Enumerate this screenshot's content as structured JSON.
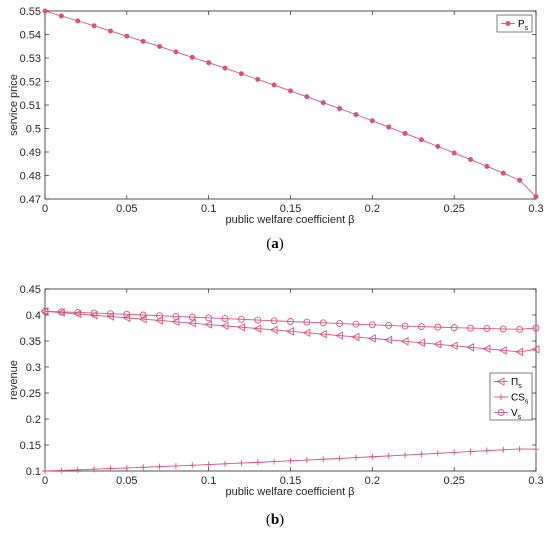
{
  "color": "#d6537a",
  "chart_data": [
    {
      "type": "line",
      "panel_label_open": "(",
      "panel_label": "a",
      "panel_label_close": ")",
      "xlabel": "public welfare coefficient β",
      "ylabel": "service price",
      "xlim": [
        0,
        0.3
      ],
      "ylim": [
        0.47,
        0.55
      ],
      "xticks": [
        "0",
        "0.05",
        "0.1",
        "0.15",
        "0.2",
        "0.25",
        "0.3"
      ],
      "yticks": [
        "0.47",
        "0.48",
        "0.49",
        "0.5",
        "0.51",
        "0.52",
        "0.53",
        "0.54",
        "0.55"
      ],
      "legend_position": "top-right",
      "x": [
        0,
        0.01,
        0.02,
        0.03,
        0.04,
        0.05,
        0.06,
        0.07,
        0.08,
        0.09,
        0.1,
        0.11,
        0.12,
        0.13,
        0.14,
        0.15,
        0.16,
        0.17,
        0.18,
        0.19,
        0.2,
        0.21,
        0.22,
        0.23,
        0.24,
        0.25,
        0.26,
        0.27,
        0.28,
        0.29,
        0.3
      ],
      "series": [
        {
          "name": "P",
          "sub": "s",
          "marker": "dot",
          "values": [
            0.55,
            0.5479,
            0.5458,
            0.5437,
            0.5415,
            0.5393,
            0.5371,
            0.5349,
            0.5326,
            0.5303,
            0.528,
            0.5257,
            0.5233,
            0.5209,
            0.5185,
            0.516,
            0.5135,
            0.511,
            0.5085,
            0.5059,
            0.5033,
            0.5006,
            0.4979,
            0.4952,
            0.4924,
            0.4896,
            0.4868,
            0.4839,
            0.481,
            0.478,
            0.471
          ]
        }
      ]
    },
    {
      "type": "line",
      "panel_label_open": "(",
      "panel_label": "b",
      "panel_label_close": ")",
      "xlabel": "public welfare coefficient β",
      "ylabel": "revenue",
      "xlim": [
        0,
        0.3
      ],
      "ylim": [
        0.1,
        0.45
      ],
      "xticks": [
        "0",
        "0.05",
        "0.1",
        "0.15",
        "0.2",
        "0.25",
        "0.3"
      ],
      "yticks": [
        "0.1",
        "0.15",
        "0.2",
        "0.25",
        "0.3",
        "0.35",
        "0.4",
        "0.45"
      ],
      "legend_position": "right",
      "x": [
        0,
        0.01,
        0.02,
        0.03,
        0.04,
        0.05,
        0.06,
        0.07,
        0.08,
        0.09,
        0.1,
        0.11,
        0.12,
        0.13,
        0.14,
        0.15,
        0.16,
        0.17,
        0.18,
        0.19,
        0.2,
        0.21,
        0.22,
        0.23,
        0.24,
        0.25,
        0.26,
        0.27,
        0.28,
        0.29,
        0.3
      ],
      "series": [
        {
          "name": "Π",
          "sub": "s",
          "marker": "triangle-left",
          "values": [
            0.407,
            0.4045,
            0.402,
            0.3995,
            0.397,
            0.3945,
            0.392,
            0.3895,
            0.3869,
            0.3843,
            0.3817,
            0.3791,
            0.3765,
            0.3739,
            0.3713,
            0.3686,
            0.3659,
            0.3632,
            0.3605,
            0.3578,
            0.355,
            0.3522,
            0.3494,
            0.3466,
            0.3437,
            0.3408,
            0.3379,
            0.335,
            0.332,
            0.329,
            0.334
          ]
        },
        {
          "name": "CS",
          "sub": "s",
          "marker": "plus",
          "values": [
            0.1,
            0.1011,
            0.1022,
            0.1034,
            0.1046,
            0.1058,
            0.1071,
            0.1084,
            0.1097,
            0.111,
            0.1124,
            0.1138,
            0.1152,
            0.1166,
            0.1181,
            0.1196,
            0.1211,
            0.1226,
            0.1242,
            0.1258,
            0.1274,
            0.129,
            0.1306,
            0.1323,
            0.134,
            0.1357,
            0.1374,
            0.1391,
            0.1408,
            0.1425,
            0.142
          ]
        },
        {
          "name": "V",
          "sub": "s",
          "marker": "circle",
          "values": [
            0.407,
            0.406,
            0.405,
            0.4038,
            0.4026,
            0.4013,
            0.4,
            0.3987,
            0.3973,
            0.3959,
            0.3945,
            0.3931,
            0.3917,
            0.3903,
            0.3889,
            0.3875,
            0.3862,
            0.3849,
            0.3836,
            0.3823,
            0.3811,
            0.3799,
            0.3788,
            0.3777,
            0.3767,
            0.3757,
            0.3748,
            0.374,
            0.3732,
            0.3725,
            0.375
          ]
        }
      ]
    }
  ]
}
